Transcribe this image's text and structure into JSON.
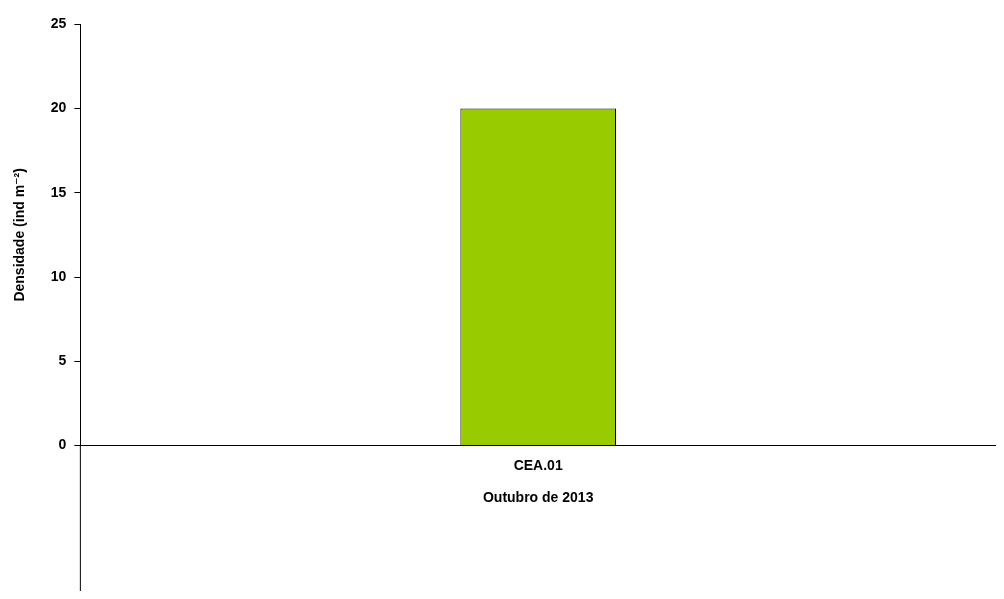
{
  "chart_data": {
    "type": "bar",
    "categories": [
      "CEA.01"
    ],
    "values": [
      20
    ],
    "color": "#99cc00",
    "xlabel": "Outubro de 2013",
    "ylabel": "Densidade (ind m⁻²)",
    "ylim": [
      0,
      25
    ],
    "yticks": [
      0,
      5,
      10,
      15,
      20,
      25
    ],
    "grid": false,
    "legend": false
  }
}
